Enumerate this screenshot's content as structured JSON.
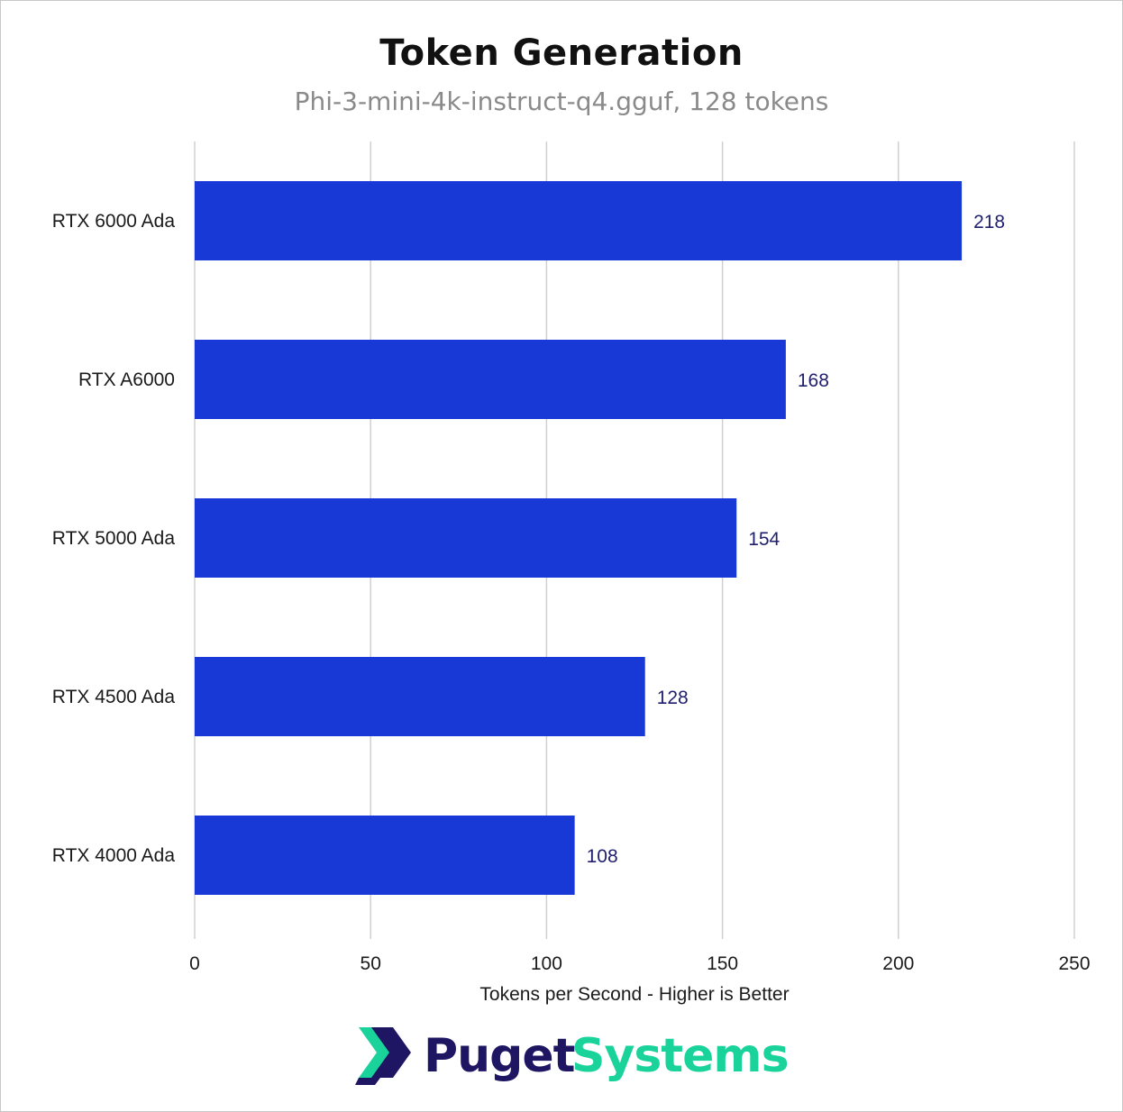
{
  "chart_data": {
    "type": "bar",
    "orientation": "horizontal",
    "title": "Token Generation",
    "subtitle": "Phi-3-mini-4k-instruct-q4.gguf, 128 tokens",
    "categories": [
      "RTX 6000 Ada",
      "RTX A6000",
      "RTX 5000 Ada",
      "RTX 4500 Ada",
      "RTX 4000 Ada"
    ],
    "values": [
      218,
      168,
      154,
      128,
      108
    ],
    "value_labels": [
      "218",
      "168",
      "154",
      "128",
      "108"
    ],
    "xlabel": "Tokens per Second - Higher is Better",
    "ylabel": "",
    "xlim": [
      0,
      250
    ],
    "xticks": [
      0,
      50,
      100,
      150,
      200,
      250
    ],
    "xtick_labels": [
      "0",
      "50",
      "100",
      "150",
      "200",
      "250"
    ],
    "grid": true,
    "bar_color": "#1939d6",
    "value_label_color": "#1f1f6e",
    "gridline_color": "#d0d0d0"
  },
  "brand": {
    "logo_word_1": "Puget",
    "logo_word_2": "Systems",
    "primary_color": "#1e1563",
    "accent_color": "#19d39a"
  }
}
